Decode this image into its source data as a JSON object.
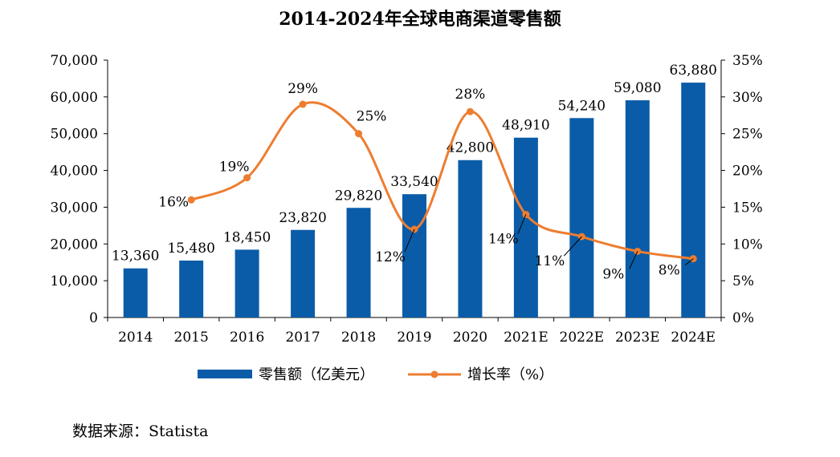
{
  "chart_data": {
    "type": "bar+line",
    "title": "2014-2024年全球电商渠道零售额",
    "categories": [
      "2014",
      "2015",
      "2016",
      "2017",
      "2018",
      "2019",
      "2020",
      "2021E",
      "2022E",
      "2023E",
      "2024E"
    ],
    "series": [
      {
        "name": "零售额（亿美元）",
        "type": "bar",
        "axis": "left",
        "color": "#0a5ca8",
        "values": [
          13360,
          15480,
          18450,
          23820,
          29820,
          33540,
          42800,
          48910,
          54240,
          59080,
          63880
        ],
        "labels": [
          "13,360",
          "15,480",
          "18,450",
          "23,820",
          "29,820",
          "33,540",
          "42,800",
          "48,910",
          "54,240",
          "59,080",
          "63,880"
        ]
      },
      {
        "name": "增长率（%）",
        "type": "line",
        "axis": "right",
        "color": "#ed7d31",
        "values": [
          null,
          16,
          19,
          29,
          25,
          12,
          28,
          14,
          11,
          9,
          8
        ],
        "labels": [
          "",
          "16%",
          "19%",
          "29%",
          "25%",
          "12%",
          "28%",
          "14%",
          "11%",
          "9%",
          "8%"
        ]
      }
    ],
    "y_left": {
      "min": 0,
      "max": 70000,
      "step": 10000,
      "ticks": [
        "0",
        "10,000",
        "20,000",
        "30,000",
        "40,000",
        "50,000",
        "60,000",
        "70,000"
      ]
    },
    "y_right": {
      "min": 0,
      "max": 35,
      "step": 5,
      "ticks": [
        "0%",
        "5%",
        "10%",
        "15%",
        "20%",
        "25%",
        "30%",
        "35%"
      ]
    },
    "legend_position": "bottom",
    "grid": false
  },
  "source_text": "数据来源：Statista"
}
